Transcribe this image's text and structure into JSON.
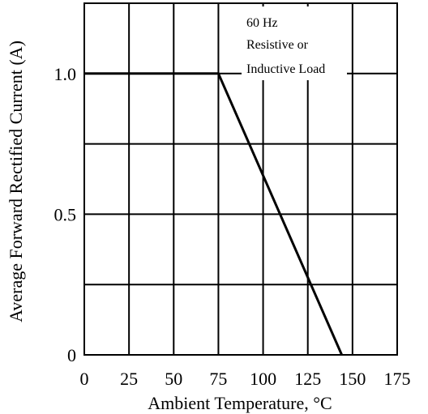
{
  "chart_data": {
    "type": "line",
    "title": "",
    "xlabel": "Ambient Temperature, °C",
    "ylabel": "Average Forward Rectified Current (A)",
    "xlim": [
      0,
      175
    ],
    "ylim": [
      0,
      1.25
    ],
    "x_ticks": [
      0,
      25,
      50,
      75,
      100,
      125,
      150,
      175
    ],
    "y_ticks": [
      0,
      0.5,
      1.0
    ],
    "x_tick_labels": [
      "0",
      "25",
      "50",
      "75",
      "100",
      "125",
      "150",
      "175"
    ],
    "y_tick_labels": [
      "0",
      "0.5",
      "1.0"
    ],
    "x_gridlines": [
      25,
      50,
      75,
      100,
      125,
      150
    ],
    "y_gridlines": [
      0.25,
      0.5,
      0.75,
      1.0
    ],
    "grid": true,
    "annotation": [
      "60 Hz",
      "Resistive or",
      "Inductive Load"
    ],
    "series": [
      {
        "x": [
          0,
          75,
          144
        ],
        "y": [
          1.0,
          1.0,
          0
        ]
      }
    ]
  }
}
